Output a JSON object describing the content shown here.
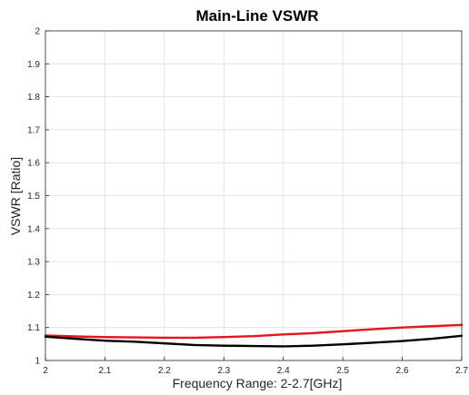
{
  "chart_data": {
    "type": "line",
    "title": "Main-Line VSWR",
    "xlabel": "Frequency Range: 2-2.7[GHz]",
    "ylabel": "VSWR [Ratio]",
    "xlim": [
      2,
      2.7
    ],
    "ylim": [
      1,
      2
    ],
    "x_ticks": [
      "2",
      "2.1",
      "2.2",
      "2.3",
      "2.4",
      "2.5",
      "2.6",
      "2.7"
    ],
    "y_ticks": [
      "1",
      "1.1",
      "1.2",
      "1.3",
      "1.4",
      "1.5",
      "1.6",
      "1.7",
      "1.8",
      "1.9",
      "2"
    ],
    "grid": true,
    "x": [
      2.0,
      2.05,
      2.1,
      2.15,
      2.2,
      2.25,
      2.3,
      2.35,
      2.4,
      2.45,
      2.5,
      2.55,
      2.6,
      2.65,
      2.7
    ],
    "series": [
      {
        "color": "#e8141c",
        "values": [
          1.076,
          1.073,
          1.071,
          1.07,
          1.069,
          1.069,
          1.071,
          1.074,
          1.079,
          1.083,
          1.089,
          1.095,
          1.1,
          1.104,
          1.108
        ]
      },
      {
        "color": "#000000",
        "values": [
          1.072,
          1.066,
          1.06,
          1.057,
          1.052,
          1.047,
          1.045,
          1.044,
          1.043,
          1.045,
          1.049,
          1.054,
          1.059,
          1.066,
          1.075
        ]
      }
    ]
  }
}
